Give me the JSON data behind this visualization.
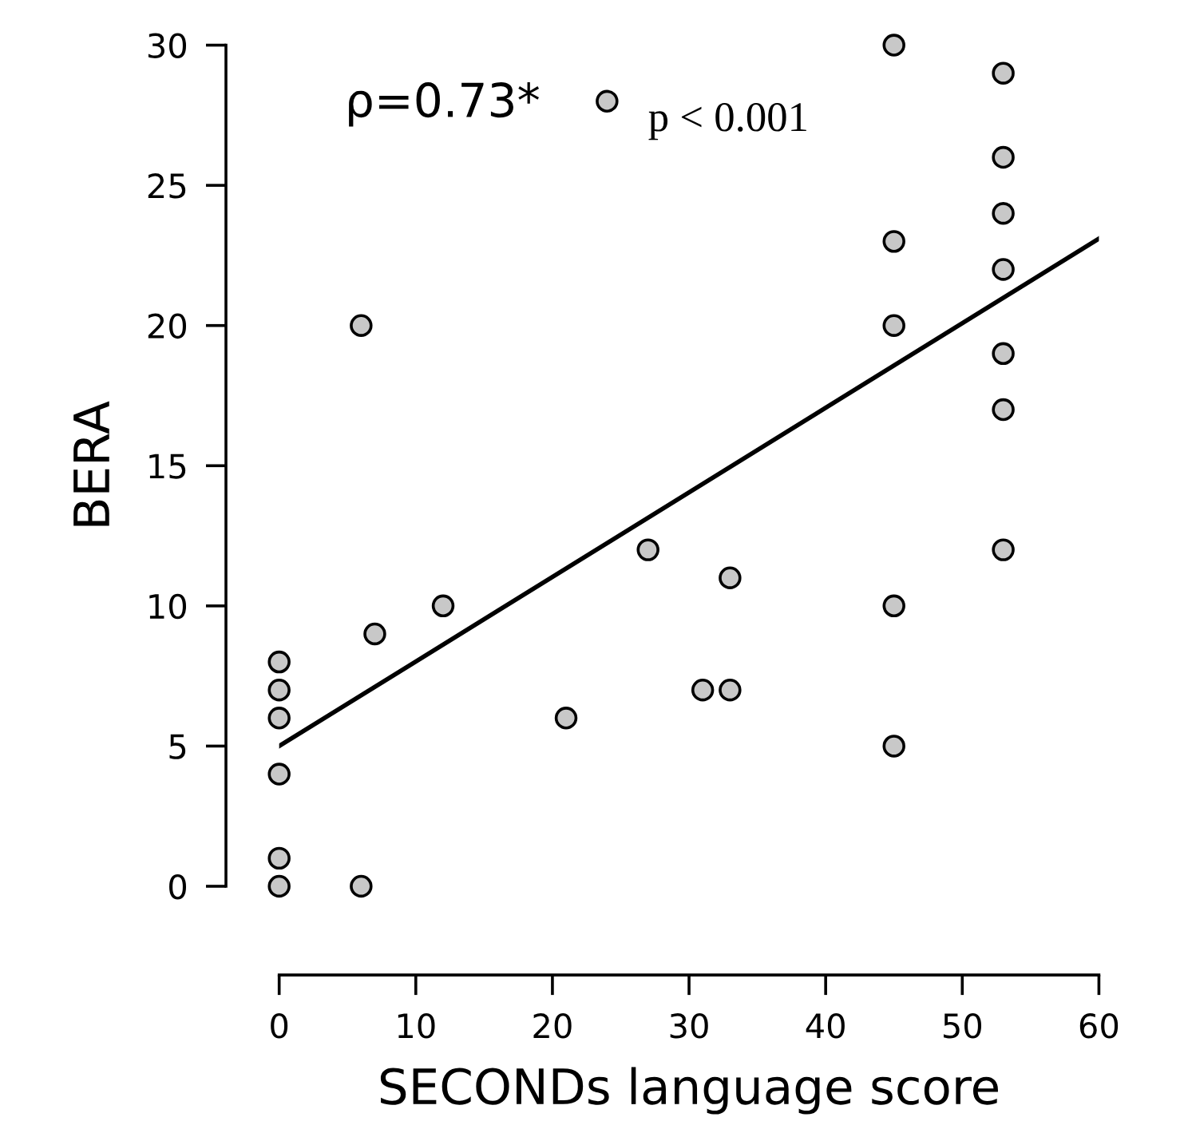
{
  "chart_data": {
    "type": "scatter",
    "xlabel": "SECONDs language score",
    "ylabel": "BERA",
    "xlim": [
      0,
      60
    ],
    "ylim": [
      0,
      30
    ],
    "xticks": [
      0,
      10,
      20,
      30,
      40,
      50,
      60
    ],
    "yticks": [
      0,
      5,
      10,
      15,
      20,
      25,
      30
    ],
    "annotations": [
      "ρ=0.73*",
      "p < 0.001"
    ],
    "series": [
      {
        "marker": "circle",
        "color": "#c8c8c8",
        "x": [
          0,
          0,
          0,
          0,
          0,
          0,
          6,
          6,
          7,
          12,
          21,
          24,
          27,
          31,
          33,
          33,
          45,
          45,
          45,
          45,
          45,
          53,
          53,
          53,
          53,
          53,
          53,
          53
        ],
        "values": [
          0,
          1,
          4,
          6,
          7,
          8,
          0,
          20,
          9,
          10,
          6,
          28,
          12,
          7,
          7,
          11,
          5,
          10,
          20,
          23,
          30,
          12,
          17,
          19,
          22,
          24,
          26,
          29
        ]
      },
      {
        "type": "line",
        "color": "#000000",
        "x": [
          0,
          60
        ],
        "values": [
          5,
          23.1
        ]
      }
    ]
  }
}
